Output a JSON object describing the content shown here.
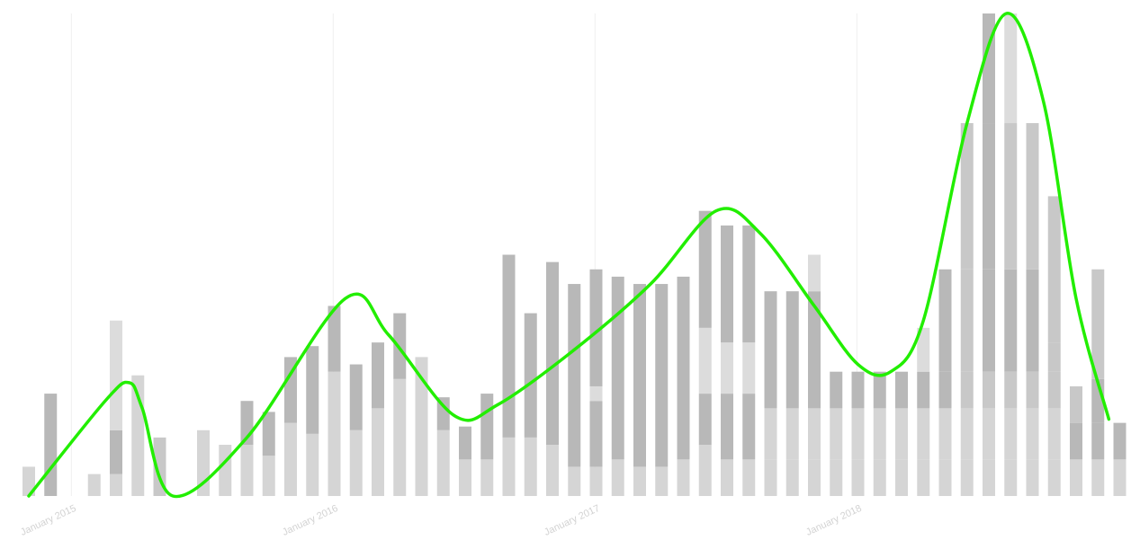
{
  "chart_data": {
    "type": "bar",
    "stacked": true,
    "grid": true,
    "xaxis": {
      "ticks": [
        {
          "label": "January 2015",
          "index": 3
        },
        {
          "label": "January 2016",
          "index": 15
        },
        {
          "label": "January 2017",
          "index": 27
        },
        {
          "label": "January 2018",
          "index": 39
        }
      ]
    },
    "ylim": [
      0,
      66
    ],
    "colors": [
      "#d5d5d5",
      "#b8b8b8",
      "#dcdcdc",
      "#c8c8c8"
    ],
    "trend_color": "#22ee00",
    "segments": [
      [
        [
          0,
          4,
          0
        ]
      ],
      [
        [
          0,
          14,
          1
        ]
      ],
      [],
      [
        [
          0,
          3,
          0
        ]
      ],
      [
        [
          0,
          3,
          0
        ],
        [
          3,
          9,
          1
        ],
        [
          9,
          24,
          2
        ]
      ],
      [
        [
          0,
          16.5,
          0
        ]
      ],
      [
        [
          0,
          8,
          3
        ]
      ],
      [],
      [
        [
          0,
          9,
          0
        ]
      ],
      [
        [
          0,
          7,
          0
        ]
      ],
      [
        [
          0,
          7,
          0
        ],
        [
          7,
          13,
          1
        ]
      ],
      [
        [
          0,
          5.5,
          0
        ],
        [
          5.5,
          11.5,
          1
        ]
      ],
      [
        [
          0,
          10,
          0
        ],
        [
          10,
          19,
          1
        ]
      ],
      [
        [
          0,
          8.5,
          0
        ],
        [
          8.5,
          20.5,
          1
        ]
      ],
      [
        [
          0,
          17,
          0
        ],
        [
          17,
          26,
          1
        ]
      ],
      [
        [
          0,
          9,
          0
        ],
        [
          9,
          18,
          1
        ]
      ],
      [
        [
          0,
          12,
          0
        ],
        [
          12,
          21,
          1
        ]
      ],
      [
        [
          0,
          16,
          0
        ],
        [
          16,
          25,
          1
        ]
      ],
      [
        [
          0,
          19,
          0
        ]
      ],
      [
        [
          0,
          9,
          0
        ],
        [
          9,
          13.5,
          1
        ]
      ],
      [
        [
          0,
          5,
          0
        ],
        [
          5,
          9.5,
          1
        ]
      ],
      [
        [
          0,
          5,
          0
        ],
        [
          5,
          14,
          1
        ]
      ],
      [
        [
          0,
          8,
          0
        ],
        [
          8,
          33,
          1
        ]
      ],
      [
        [
          0,
          8,
          0
        ],
        [
          8,
          25,
          1
        ]
      ],
      [
        [
          0,
          7,
          0
        ],
        [
          7,
          32,
          1
        ]
      ],
      [
        [
          0,
          4,
          0
        ],
        [
          4,
          29,
          1
        ]
      ],
      [
        [
          0,
          4,
          0
        ],
        [
          4,
          13,
          1
        ],
        [
          13,
          15,
          2
        ],
        [
          15,
          31,
          1
        ]
      ],
      [
        [
          0,
          5,
          0
        ],
        [
          5,
          30,
          1
        ]
      ],
      [
        [
          0,
          4,
          0
        ],
        [
          4,
          29,
          1
        ]
      ],
      [
        [
          0,
          4,
          0
        ],
        [
          4,
          29,
          1
        ]
      ],
      [
        [
          0,
          5,
          0
        ],
        [
          5,
          30,
          1
        ]
      ],
      [
        [
          0,
          7,
          0
        ],
        [
          7,
          14,
          1
        ],
        [
          14,
          23,
          2
        ],
        [
          23,
          39,
          1
        ]
      ],
      [
        [
          0,
          5,
          0
        ],
        [
          5,
          14,
          1
        ],
        [
          14,
          21,
          2
        ],
        [
          21,
          37,
          1
        ]
      ],
      [
        [
          0,
          5,
          0
        ],
        [
          5,
          14,
          1
        ],
        [
          14,
          21,
          2
        ],
        [
          21,
          37,
          1
        ]
      ],
      [
        [
          0,
          5,
          0
        ],
        [
          5,
          12,
          0
        ],
        [
          12,
          28,
          1
        ]
      ],
      [
        [
          0,
          5,
          0
        ],
        [
          5,
          12,
          0
        ],
        [
          12,
          28,
          1
        ]
      ],
      [
        [
          0,
          5,
          0
        ],
        [
          5,
          12,
          0
        ],
        [
          12,
          28,
          1
        ],
        [
          28,
          33,
          2
        ]
      ],
      [
        [
          0,
          5,
          0
        ],
        [
          5,
          12,
          0
        ],
        [
          12,
          17,
          1
        ]
      ],
      [
        [
          0,
          5,
          0
        ],
        [
          5,
          12,
          0
        ],
        [
          12,
          17,
          1
        ]
      ],
      [
        [
          0,
          5,
          0
        ],
        [
          5,
          12,
          0
        ],
        [
          12,
          17,
          1
        ]
      ],
      [
        [
          0,
          5,
          0
        ],
        [
          5,
          12,
          0
        ],
        [
          12,
          17,
          1
        ]
      ],
      [
        [
          0,
          5,
          0
        ],
        [
          5,
          12,
          0
        ],
        [
          12,
          17,
          1
        ],
        [
          17,
          23,
          2
        ]
      ],
      [
        [
          0,
          5,
          0
        ],
        [
          5,
          12,
          0
        ],
        [
          12,
          17,
          1
        ],
        [
          17,
          31,
          1
        ]
      ],
      [
        [
          0,
          5,
          0
        ],
        [
          5,
          12,
          0
        ],
        [
          12,
          17,
          3
        ],
        [
          17,
          31,
          3
        ],
        [
          31,
          51,
          3
        ]
      ],
      [
        [
          0,
          5,
          0
        ],
        [
          5,
          12,
          0
        ],
        [
          12,
          17,
          3
        ],
        [
          17,
          31,
          1
        ],
        [
          31,
          51,
          1
        ],
        [
          51,
          66,
          1
        ]
      ],
      [
        [
          0,
          5,
          0
        ],
        [
          5,
          12,
          0
        ],
        [
          12,
          17,
          3
        ],
        [
          17,
          31,
          1
        ],
        [
          31,
          51,
          3
        ],
        [
          51,
          66,
          2
        ]
      ],
      [
        [
          0,
          5,
          0
        ],
        [
          5,
          12,
          0
        ],
        [
          12,
          17,
          3
        ],
        [
          17,
          31,
          1
        ],
        [
          31,
          51,
          3
        ]
      ],
      [
        [
          0,
          5,
          0
        ],
        [
          5,
          12,
          0
        ],
        [
          12,
          17,
          3
        ],
        [
          17,
          21,
          3
        ],
        [
          21,
          41,
          3
        ]
      ],
      [
        [
          0,
          5,
          0
        ],
        [
          5,
          10,
          1
        ],
        [
          10,
          15,
          3
        ]
      ],
      [
        [
          0,
          5,
          0
        ],
        [
          5,
          10,
          1
        ],
        [
          10,
          16,
          1
        ],
        [
          16,
          31,
          3
        ]
      ],
      [
        [
          0,
          5,
          0
        ],
        [
          5,
          10,
          1
        ]
      ],
      [
        [
          0,
          5,
          0
        ],
        [
          5,
          10,
          1
        ]
      ]
    ],
    "trend": [
      [
        0,
        0
      ],
      [
        3.5,
        13
      ],
      [
        4.6,
        15.5
      ],
      [
        5.2,
        12
      ],
      [
        6.6,
        0
      ],
      [
        10,
        8
      ],
      [
        14.5,
        27
      ],
      [
        16.5,
        22
      ],
      [
        19.5,
        11
      ],
      [
        21.5,
        12.5
      ],
      [
        25,
        20
      ],
      [
        28.5,
        29
      ],
      [
        31.5,
        39
      ],
      [
        33.5,
        36
      ],
      [
        36,
        26
      ],
      [
        38,
        18
      ],
      [
        39.5,
        17
      ],
      [
        41,
        24
      ],
      [
        43,
        51
      ],
      [
        44.8,
        66
      ],
      [
        46.5,
        54
      ],
      [
        48,
        27
      ],
      [
        49.5,
        10.5
      ]
    ]
  }
}
